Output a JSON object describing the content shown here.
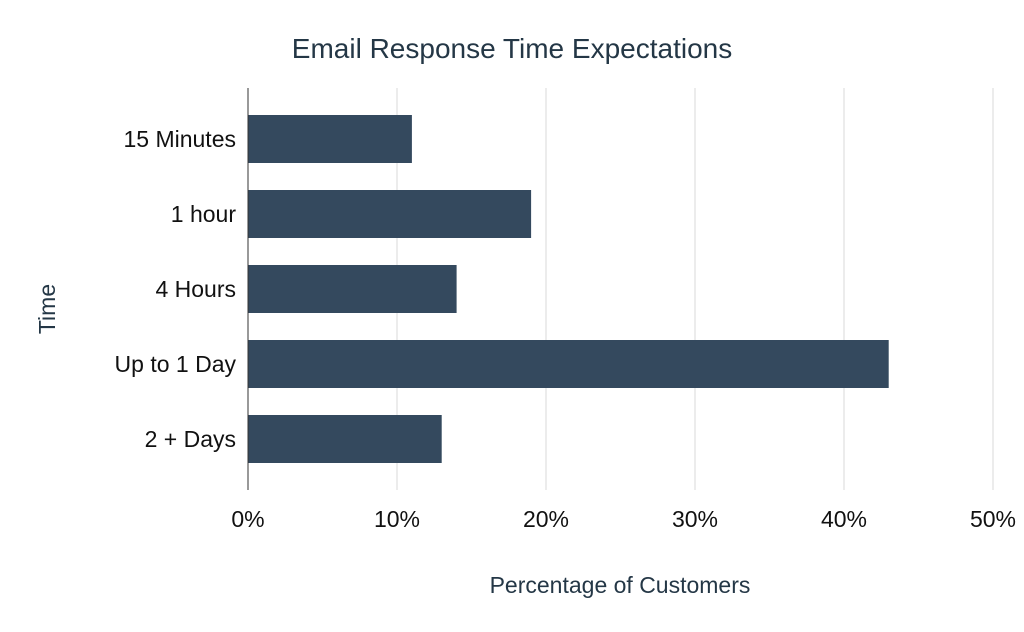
{
  "chart_data": {
    "type": "bar",
    "orientation": "horizontal",
    "title": "Email Response Time Expectations",
    "xlabel": "Percentage of Customers",
    "ylabel": "Time",
    "categories": [
      "15 Minutes",
      "1 hour",
      "4 Hours",
      "Up to 1 Day",
      "2 + Days"
    ],
    "values": [
      11,
      19,
      14,
      43,
      13
    ],
    "value_unit": "%",
    "xlim": [
      0,
      50
    ],
    "x_ticks": [
      "0%",
      "10%",
      "20%",
      "30%",
      "40%",
      "50%"
    ],
    "grid": "vertical",
    "legend": "none",
    "colors": {
      "bar": "#34495e",
      "title": "#243746",
      "grid": "#d9d9d9"
    }
  }
}
